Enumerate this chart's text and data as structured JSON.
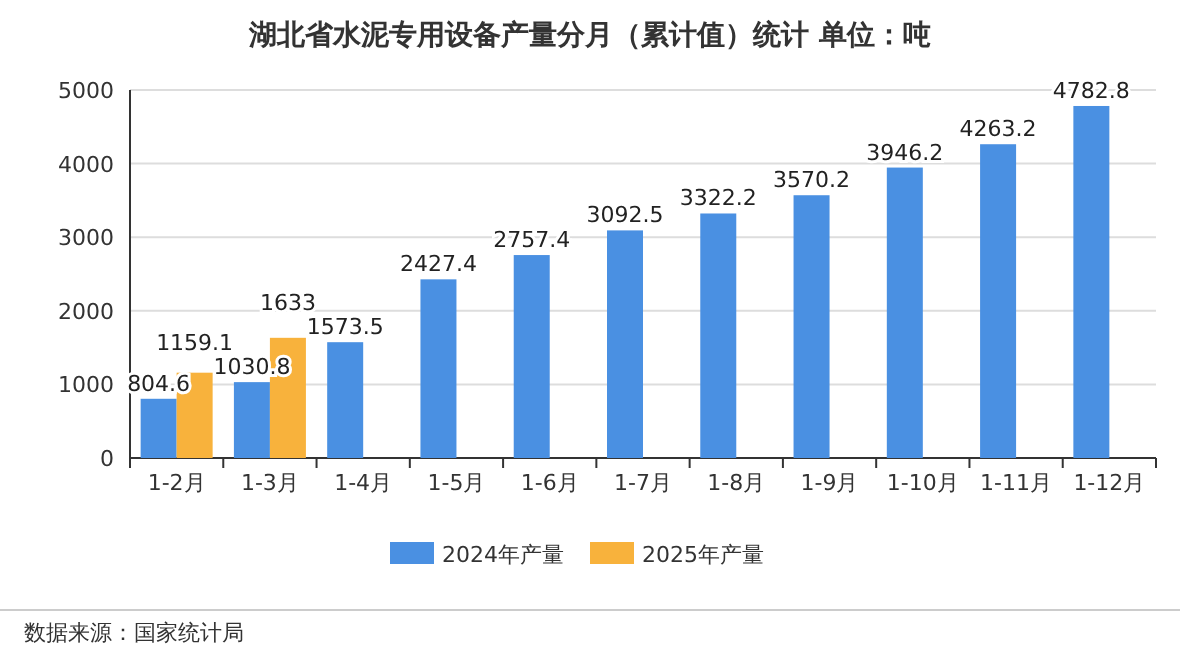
{
  "chart_data": {
    "type": "bar",
    "title": "湖北省水泥专用设备产量分月（累计值）统计  单位：吨",
    "categories": [
      "1-2月",
      "1-3月",
      "1-4月",
      "1-5月",
      "1-6月",
      "1-7月",
      "1-8月",
      "1-9月",
      "1-10月",
      "1-11月",
      "1-12月"
    ],
    "series": [
      {
        "name": "2024年产量",
        "color": "#4a90e2",
        "values": [
          804.6,
          1030.8,
          1573.5,
          2427.4,
          2757.4,
          3092.5,
          3322.2,
          3570.2,
          3946.2,
          4263.2,
          4782.8
        ]
      },
      {
        "name": "2025年产量",
        "color": "#f8b23c",
        "values": [
          1159.1,
          1633,
          null,
          null,
          null,
          null,
          null,
          null,
          null,
          null,
          null
        ]
      }
    ],
    "ylim": [
      0,
      5000
    ],
    "yticks": [
      0,
      1000,
      2000,
      3000,
      4000,
      5000
    ],
    "grid": "y",
    "legend": "bottom",
    "data_labels": true,
    "annotations": [
      "数据来源：国家统计局"
    ]
  }
}
